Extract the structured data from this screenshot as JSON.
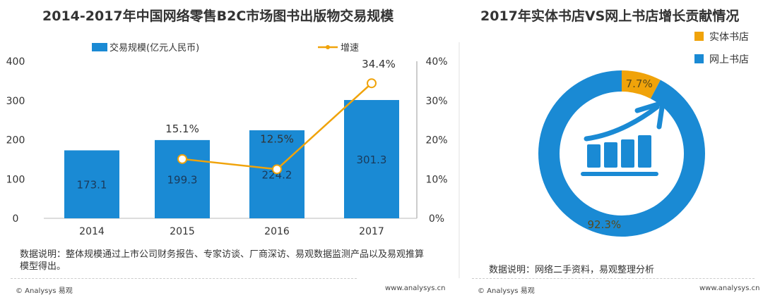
{
  "chart_data": [
    {
      "type": "bar+line",
      "title": "2014-2017年中国网络零售B2C市场图书出版物交易规模",
      "categories": [
        "2014",
        "2015",
        "2016",
        "2017"
      ],
      "series": [
        {
          "name": "交易规模(亿元人民币)",
          "type": "bar",
          "axis": "left",
          "values": [
            173.1,
            199.3,
            224.2,
            301.3
          ],
          "labels": [
            "173.1",
            "199.3",
            "224.2",
            "301.3"
          ]
        },
        {
          "name": "增速",
          "type": "line",
          "axis": "right",
          "values": [
            null,
            15.1,
            12.5,
            34.4
          ],
          "labels": [
            "",
            "15.1%",
            "12.5%",
            "34.4%"
          ]
        }
      ],
      "ylim": [
        0,
        400
      ],
      "yticks": [
        "0",
        "100",
        "200",
        "300",
        "400"
      ],
      "y2lim": [
        0,
        40
      ],
      "y2ticks": [
        "0%",
        "10%",
        "20%",
        "30%",
        "40%"
      ],
      "legend": "top",
      "colors": {
        "bar": "#1a8ad4",
        "line": "#f0a30a"
      }
    },
    {
      "type": "pie",
      "title": "2017年实体书店VS网上书店增长贡献情况",
      "slices": [
        {
          "name": "实体书店",
          "value": 7.7,
          "label": "7.7%",
          "color": "#f0a30a"
        },
        {
          "name": "网上书店",
          "value": 92.3,
          "label": "92.3%",
          "color": "#1a8ad4"
        }
      ],
      "legend": "top-right"
    }
  ],
  "notes": {
    "left": "数据说明：整体规模通过上市公司财务报告、专家访谈、厂商深访、易观数据监测产品以及易观推算模型得出。",
    "right": "数据说明：网络二手资料，易观整理分析"
  },
  "footer": {
    "brand": "© Analysys 易观",
    "url": "www.analysys.cn"
  }
}
